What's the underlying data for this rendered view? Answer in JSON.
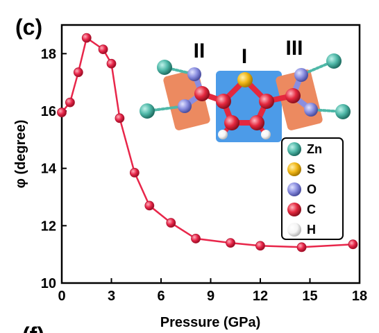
{
  "panel_label": "(c)",
  "next_panel_label": "(f)",
  "chart_data": {
    "type": "line",
    "xlabel": "Pressure (GPa)",
    "ylabel": "φ (degree)",
    "xlim": [
      0,
      18
    ],
    "ylim": [
      10,
      19
    ],
    "x_ticks": [
      0,
      3,
      6,
      9,
      12,
      15,
      18
    ],
    "y_ticks": [
      10,
      12,
      14,
      16,
      18
    ],
    "grid": false,
    "series": [
      {
        "color": "#e8264a",
        "points": [
          {
            "x": 0.0,
            "y": 15.95
          },
          {
            "x": 0.5,
            "y": 16.3
          },
          {
            "x": 1.0,
            "y": 17.35
          },
          {
            "x": 1.5,
            "y": 18.55
          },
          {
            "x": 2.5,
            "y": 18.15
          },
          {
            "x": 3.0,
            "y": 17.65
          },
          {
            "x": 3.5,
            "y": 15.75
          },
          {
            "x": 4.4,
            "y": 13.85
          },
          {
            "x": 5.3,
            "y": 12.7
          },
          {
            "x": 6.6,
            "y": 12.1
          },
          {
            "x": 8.1,
            "y": 11.55
          },
          {
            "x": 10.2,
            "y": 11.4
          },
          {
            "x": 12.0,
            "y": 11.3
          },
          {
            "x": 14.5,
            "y": 11.25
          },
          {
            "x": 17.6,
            "y": 11.35
          }
        ]
      }
    ]
  },
  "molecule": {
    "region_labels": [
      "II",
      "I",
      "III"
    ],
    "colors": {
      "side_region": "#ec8a60",
      "center_region": "#4c9be8",
      "Zn": "#4fb8a8",
      "S": "#f2b818",
      "O": "#8a8ee0",
      "C": "#e4283e",
      "H": "#f4f4f4"
    }
  },
  "legend": {
    "position": "right",
    "items": [
      {
        "label": "Zn",
        "color": "#4fb8a8"
      },
      {
        "label": "S",
        "color": "#f2b818"
      },
      {
        "label": "O",
        "color": "#8a8ee0"
      },
      {
        "label": "C",
        "color": "#e4283e"
      },
      {
        "label": "H",
        "color": "#f4f4f4"
      }
    ]
  }
}
